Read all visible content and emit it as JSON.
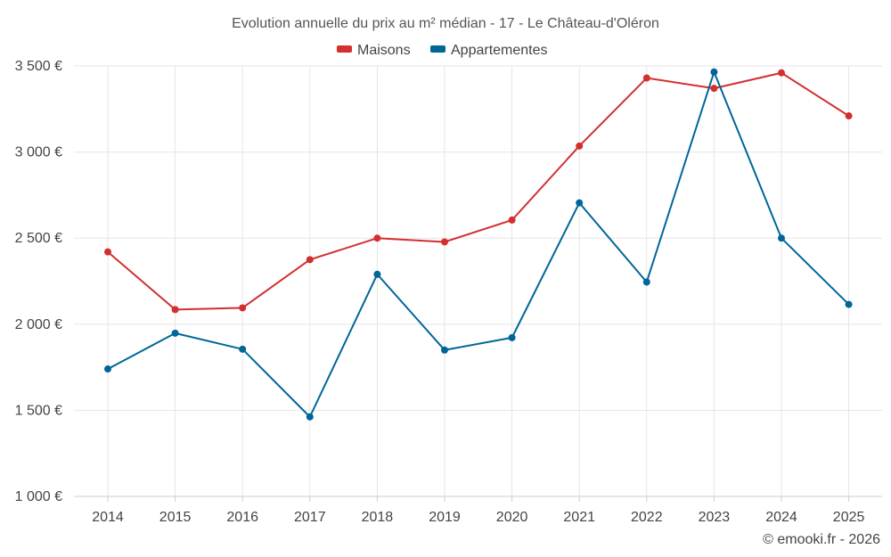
{
  "chart_data": {
    "type": "line",
    "title": "Evolution annuelle du prix au m² médian - 17 - Le Château-d'Oléron",
    "categories": [
      "2014",
      "2015",
      "2016",
      "2017",
      "2018",
      "2019",
      "2020",
      "2021",
      "2022",
      "2023",
      "2024",
      "2025"
    ],
    "series": [
      {
        "name": "Maisons",
        "color": "#d32f2f",
        "values": [
          2420,
          2085,
          2095,
          2375,
          2500,
          2478,
          2605,
          3035,
          3430,
          3370,
          3460,
          3210
        ]
      },
      {
        "name": "Appartementes",
        "color": "#006699",
        "values": [
          1740,
          1948,
          1855,
          1462,
          2290,
          1850,
          1922,
          2705,
          2245,
          3465,
          2500,
          2115
        ]
      }
    ],
    "ylim": [
      1000,
      3500
    ],
    "yticks": [
      {
        "value": 3500,
        "label": "3 500 €"
      },
      {
        "value": 3000,
        "label": "3 000 €"
      },
      {
        "value": 2500,
        "label": "2 500 €"
      },
      {
        "value": 2000,
        "label": "2 000 €"
      },
      {
        "value": 1500,
        "label": "1 500 €"
      },
      {
        "value": 1000,
        "label": "1 000 €"
      }
    ],
    "xlabel": "",
    "ylabel": "",
    "grid": true,
    "legend_position": "top-center"
  },
  "credit": "© emooki.fr - 2026"
}
